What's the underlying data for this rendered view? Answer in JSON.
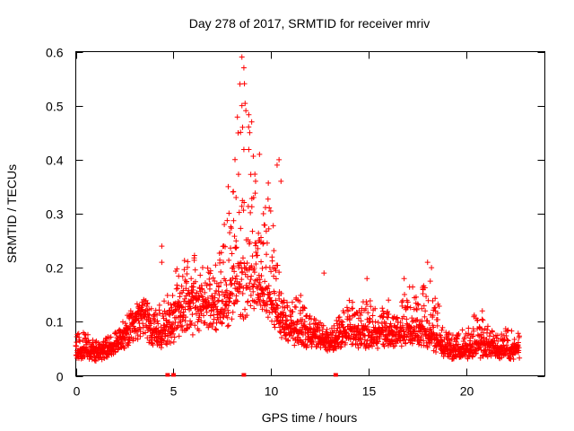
{
  "chart_data": {
    "type": "scatter",
    "title": "Day 278 of 2017, SRMTID for receiver mriv",
    "xlabel": "GPS time / hours",
    "ylabel": "SRMTID / TECUs",
    "xlim": [
      0,
      24
    ],
    "ylim": [
      0,
      0.6
    ],
    "xticks": [
      0,
      5,
      10,
      15,
      20
    ],
    "xtick_labels": [
      "0",
      "5",
      "10",
      "15",
      "20"
    ],
    "yticks": [
      0,
      0.1,
      0.2,
      0.3,
      0.4,
      0.5,
      0.6
    ],
    "ytick_labels": [
      "0",
      "0.1",
      "0.2",
      "0.3",
      "0.4",
      "0.5",
      "0.6"
    ],
    "grid": false,
    "marker": "+",
    "series_color": "#ff0000",
    "envelope": {
      "description": "approximate lower/median/upper SRMTID envelope vs time (hours)",
      "x": [
        0.0,
        0.5,
        1.0,
        1.5,
        2.0,
        2.5,
        3.0,
        3.5,
        4.0,
        4.5,
        5.0,
        5.5,
        6.0,
        6.5,
        7.0,
        7.5,
        8.0,
        8.5,
        9.0,
        9.5,
        10.0,
        10.5,
        11.0,
        11.5,
        12.0,
        12.5,
        13.0,
        13.5,
        14.0,
        14.5,
        15.0,
        15.5,
        16.0,
        16.5,
        17.0,
        17.5,
        18.0,
        18.5,
        19.0,
        19.5,
        20.0,
        20.5,
        21.0,
        21.5,
        22.0,
        22.7
      ],
      "low": [
        0.03,
        0.03,
        0.025,
        0.03,
        0.04,
        0.05,
        0.06,
        0.07,
        0.05,
        0.05,
        0.06,
        0.08,
        0.07,
        0.08,
        0.08,
        0.08,
        0.1,
        0.1,
        0.12,
        0.12,
        0.1,
        0.07,
        0.06,
        0.05,
        0.05,
        0.05,
        0.04,
        0.05,
        0.06,
        0.05,
        0.05,
        0.05,
        0.05,
        0.05,
        0.06,
        0.05,
        0.05,
        0.04,
        0.03,
        0.03,
        0.03,
        0.03,
        0.03,
        0.03,
        0.03,
        0.03
      ],
      "mid": [
        0.05,
        0.05,
        0.045,
        0.05,
        0.06,
        0.08,
        0.1,
        0.12,
        0.08,
        0.08,
        0.12,
        0.13,
        0.14,
        0.14,
        0.13,
        0.14,
        0.18,
        0.2,
        0.2,
        0.18,
        0.14,
        0.1,
        0.09,
        0.08,
        0.08,
        0.07,
        0.06,
        0.08,
        0.09,
        0.08,
        0.09,
        0.08,
        0.08,
        0.08,
        0.09,
        0.09,
        0.09,
        0.07,
        0.05,
        0.05,
        0.05,
        0.06,
        0.06,
        0.05,
        0.05,
        0.05
      ],
      "high": [
        0.08,
        0.08,
        0.065,
        0.07,
        0.08,
        0.11,
        0.13,
        0.15,
        0.12,
        0.14,
        0.2,
        0.22,
        0.23,
        0.21,
        0.2,
        0.24,
        0.35,
        0.59,
        0.45,
        0.3,
        0.39,
        0.16,
        0.14,
        0.15,
        0.11,
        0.1,
        0.08,
        0.12,
        0.14,
        0.13,
        0.15,
        0.13,
        0.12,
        0.12,
        0.18,
        0.15,
        0.2,
        0.14,
        0.08,
        0.08,
        0.09,
        0.12,
        0.1,
        0.08,
        0.09,
        0.08
      ]
    },
    "notable_points": [
      {
        "x": 8.5,
        "y": 0.59
      },
      {
        "x": 8.6,
        "y": 0.57
      },
      {
        "x": 8.4,
        "y": 0.54
      },
      {
        "x": 8.5,
        "y": 0.5
      },
      {
        "x": 9.0,
        "y": 0.47
      },
      {
        "x": 8.9,
        "y": 0.45
      },
      {
        "x": 9.4,
        "y": 0.41
      },
      {
        "x": 10.4,
        "y": 0.4
      },
      {
        "x": 10.5,
        "y": 0.36
      },
      {
        "x": 10.3,
        "y": 0.39
      },
      {
        "x": 4.4,
        "y": 0.24
      },
      {
        "x": 4.4,
        "y": 0.21
      },
      {
        "x": 7.6,
        "y": 0.28
      },
      {
        "x": 7.8,
        "y": 0.35
      },
      {
        "x": 8.2,
        "y": 0.33
      },
      {
        "x": 9.2,
        "y": 0.36
      },
      {
        "x": 9.6,
        "y": 0.3
      },
      {
        "x": 12.7,
        "y": 0.19
      },
      {
        "x": 14.9,
        "y": 0.18
      },
      {
        "x": 16.0,
        "y": 0.14
      },
      {
        "x": 16.8,
        "y": 0.18
      },
      {
        "x": 18.0,
        "y": 0.21
      },
      {
        "x": 18.2,
        "y": 0.2
      },
      {
        "x": 20.8,
        "y": 0.12
      }
    ],
    "zero_markers": [
      {
        "x": 4.7,
        "y": 0.0
      },
      {
        "x": 5.0,
        "y": 0.0
      },
      {
        "x": 8.6,
        "y": 0.0
      },
      {
        "x": 13.3,
        "y": 0.0
      }
    ]
  }
}
